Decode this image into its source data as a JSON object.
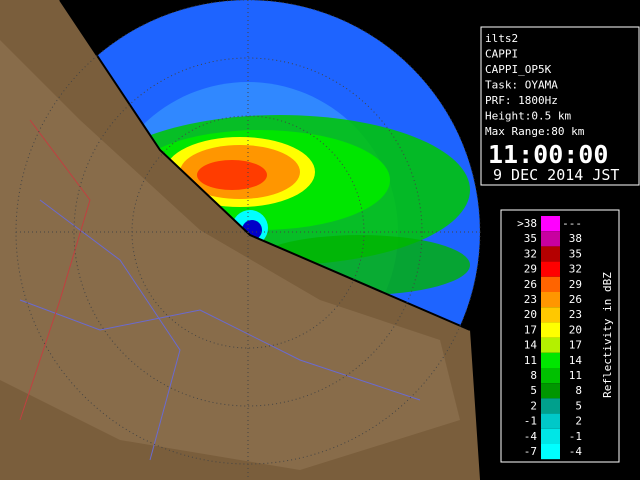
{
  "info": {
    "lines": [
      "ilts2",
      "CAPPI",
      "CAPPI_OP5K",
      "Task: OYAMA",
      "PRF: 1800Hz",
      "Height:0.5 km",
      "Max Range:80 km"
    ],
    "time": "11:00:00",
    "date": "9 DEC 2014 JST"
  },
  "legend": {
    "title": "Reflectivity in dBZ",
    "rows": [
      {
        "low": ">38",
        "high": "---",
        "color": "#ff00ff"
      },
      {
        "low": "35",
        "high": "38",
        "color": "#c800a0"
      },
      {
        "low": "32",
        "high": "35",
        "color": "#b40000"
      },
      {
        "low": "29",
        "high": "32",
        "color": "#ff0000"
      },
      {
        "low": "26",
        "high": "29",
        "color": "#ff6400"
      },
      {
        "low": "23",
        "high": "26",
        "color": "#ff9600"
      },
      {
        "low": "20",
        "high": "23",
        "color": "#ffc800"
      },
      {
        "low": "17",
        "high": "20",
        "color": "#ffff00"
      },
      {
        "low": "14",
        "high": "17",
        "color": "#b4f000"
      },
      {
        "low": "11",
        "high": "14",
        "color": "#00e600"
      },
      {
        "low": "8",
        "high": "11",
        "color": "#00c000"
      },
      {
        "low": "5",
        "high": "8",
        "color": "#009600"
      },
      {
        "low": "2",
        "high": "5",
        "color": "#00a08c"
      },
      {
        "low": "-1",
        "high": "2",
        "color": "#00c8c8"
      },
      {
        "low": "-4",
        "high": "-1",
        "color": "#00e6e6"
      },
      {
        "low": "-7",
        "high": "-4",
        "color": "#00ffff"
      }
    ]
  }
}
